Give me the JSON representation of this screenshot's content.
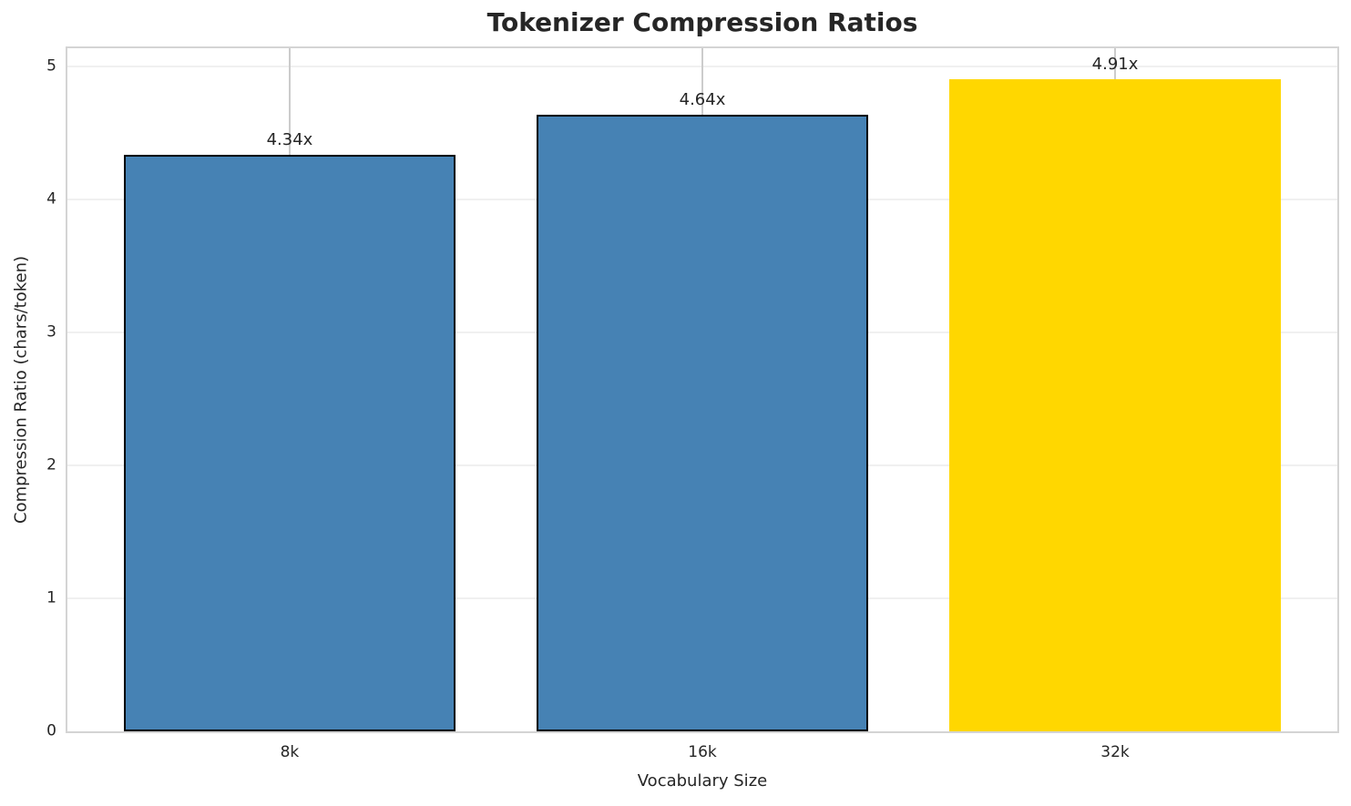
{
  "figure": {
    "background_color": "#ffffff"
  },
  "chart_data": {
    "type": "bar",
    "title": "Tokenizer Compression Ratios",
    "xlabel": "Vocabulary Size",
    "ylabel": "Compression Ratio (chars/token)",
    "categories": [
      "8k",
      "16k",
      "32k"
    ],
    "values": [
      4.34,
      4.64,
      4.91
    ],
    "bar_labels": [
      "4.34x",
      "4.64x",
      "4.91x"
    ],
    "bar_colors": [
      "#4682B4",
      "#4682B4",
      "#FFD700"
    ],
    "bar_edge_colors": [
      "#000000",
      "#000000",
      "none"
    ],
    "yticks": [
      0,
      1,
      2,
      3,
      4,
      5
    ],
    "ylim": [
      0,
      5.14
    ],
    "xlim_note": "categorical axis, 3 bars",
    "bar_width_frac": 0.261,
    "grid": {
      "horizontal": true,
      "horizontal_color": "#f0f0f0",
      "vertical_at_categories": true,
      "vertical_color": "#cccccc"
    },
    "spine_color": "#d4d4d4",
    "legend_position": "none"
  }
}
